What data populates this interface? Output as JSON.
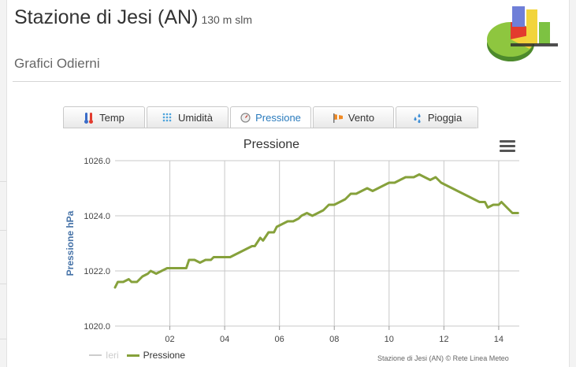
{
  "header": {
    "title": "Stazione di Jesi (AN)",
    "altitude": "130 m slm",
    "subtitle": "Grafici Odierni"
  },
  "tabs": [
    {
      "label": "Temp",
      "icon": "thermometer-icon",
      "active": false
    },
    {
      "label": "Umidità",
      "icon": "humidity-icon",
      "active": false
    },
    {
      "label": "Pressione",
      "icon": "barometer-icon",
      "active": true
    },
    {
      "label": "Vento",
      "icon": "windsock-icon",
      "active": false
    },
    {
      "label": "Pioggia",
      "icon": "rain-icon",
      "active": false
    }
  ],
  "legend": {
    "ieri": "Ieri",
    "pressione": "Pressione"
  },
  "credits": "Stazione di Jesi (AN) © Rete Linea Meteo",
  "colors": {
    "series": "#86a13b",
    "axis_title": "#4572a7",
    "grid": "#c8c8c8",
    "active_tab": "#2a7bbd"
  },
  "chart_data": {
    "type": "line",
    "title": "Pressione",
    "ylabel": "Pressione hPa",
    "xlabel": "",
    "xlim": [
      0,
      14.75
    ],
    "ylim": [
      1020,
      1026
    ],
    "xticks": [
      "02",
      "04",
      "06",
      "08",
      "10",
      "12",
      "14"
    ],
    "yticks": [
      "1020.0",
      "1022.0",
      "1024.0",
      "1026.0"
    ],
    "grid": true,
    "legend_position": "bottom-left",
    "series": [
      {
        "name": "Pressione",
        "x": [
          0,
          0.1,
          0.3,
          0.5,
          0.6,
          0.8,
          1.0,
          1.2,
          1.3,
          1.5,
          1.7,
          1.9,
          2.0,
          2.2,
          2.4,
          2.6,
          2.7,
          2.9,
          3.1,
          3.3,
          3.5,
          3.6,
          3.8,
          4.0,
          4.2,
          4.4,
          4.6,
          4.8,
          5.0,
          5.1,
          5.3,
          5.4,
          5.6,
          5.8,
          5.9,
          6.1,
          6.3,
          6.5,
          6.7,
          6.8,
          7.0,
          7.2,
          7.4,
          7.6,
          7.8,
          8.0,
          8.2,
          8.4,
          8.6,
          8.8,
          9.0,
          9.2,
          9.4,
          9.6,
          9.8,
          10.0,
          10.2,
          10.4,
          10.6,
          10.8,
          10.9,
          11.1,
          11.3,
          11.5,
          11.7,
          11.9,
          12.1,
          12.3,
          12.5,
          12.7,
          12.9,
          13.1,
          13.3,
          13.5,
          13.6,
          13.8,
          14.0,
          14.1,
          14.3,
          14.5,
          14.7
        ],
        "y": [
          1021.4,
          1021.6,
          1021.6,
          1021.7,
          1021.6,
          1021.6,
          1021.8,
          1021.9,
          1022.0,
          1021.9,
          1022.0,
          1022.1,
          1022.1,
          1022.1,
          1022.1,
          1022.1,
          1022.4,
          1022.4,
          1022.3,
          1022.4,
          1022.4,
          1022.5,
          1022.5,
          1022.5,
          1022.5,
          1022.6,
          1022.7,
          1022.8,
          1022.9,
          1022.9,
          1023.2,
          1023.1,
          1023.4,
          1023.4,
          1023.6,
          1023.7,
          1023.8,
          1023.8,
          1023.9,
          1024.0,
          1024.1,
          1024.0,
          1024.1,
          1024.2,
          1024.4,
          1024.4,
          1024.5,
          1024.6,
          1024.8,
          1024.8,
          1024.9,
          1025.0,
          1024.9,
          1025.0,
          1025.1,
          1025.2,
          1025.2,
          1025.3,
          1025.4,
          1025.4,
          1025.4,
          1025.5,
          1025.4,
          1025.3,
          1025.4,
          1025.2,
          1025.1,
          1025.0,
          1024.9,
          1024.8,
          1024.7,
          1024.6,
          1024.5,
          1024.5,
          1024.3,
          1024.4,
          1024.4,
          1024.5,
          1024.3,
          1024.1,
          1024.1
        ]
      }
    ]
  }
}
